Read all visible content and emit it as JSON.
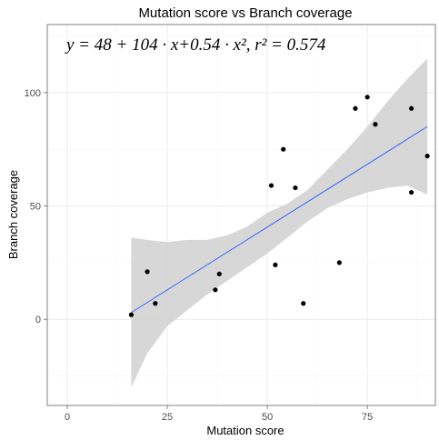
{
  "chart_data": {
    "type": "scatter",
    "title": "Mutation score vs Branch coverage",
    "xlabel": "Mutation score",
    "ylabel": "Branch coverage",
    "annotation": "y = 48 + 104 · x+0.54 · x², r² = 0.574",
    "xlim": [
      -5,
      92
    ],
    "ylim": [
      -38,
      130
    ],
    "x_ticks": [
      0,
      25,
      50,
      75
    ],
    "y_ticks": [
      0,
      50,
      100
    ],
    "x_tick_labels": [
      "0",
      "25",
      "50",
      "75"
    ],
    "y_tick_labels": [
      "0",
      "50",
      "100"
    ],
    "grid": true,
    "colors": {
      "points": "#000000",
      "fit_line": "#3366ff",
      "confidence_band": "#d3d3d3",
      "panel_border": "#7f7f7f",
      "grid_major": "#ebebeb",
      "grid_minor": "#f5f5f5"
    },
    "points": [
      {
        "x": 16,
        "y": 2
      },
      {
        "x": 20,
        "y": 21
      },
      {
        "x": 22,
        "y": 7
      },
      {
        "x": 37,
        "y": 13
      },
      {
        "x": 38,
        "y": 20
      },
      {
        "x": 51,
        "y": 59
      },
      {
        "x": 52,
        "y": 24
      },
      {
        "x": 54,
        "y": 75
      },
      {
        "x": 57,
        "y": 58
      },
      {
        "x": 59,
        "y": 7
      },
      {
        "x": 68,
        "y": 25
      },
      {
        "x": 72,
        "y": 93
      },
      {
        "x": 75,
        "y": 98
      },
      {
        "x": 77,
        "y": 86
      },
      {
        "x": 86,
        "y": 93
      },
      {
        "x": 86,
        "y": 56
      },
      {
        "x": 90,
        "y": 72
      }
    ],
    "fit_line": {
      "x": [
        16,
        90
      ],
      "y": [
        3,
        85
      ]
    },
    "confidence_band": {
      "x": [
        16,
        20,
        25,
        30,
        35,
        40,
        45,
        50,
        55,
        60,
        65,
        70,
        75,
        80,
        85,
        90
      ],
      "lower": [
        -30,
        -15,
        -3,
        4,
        11,
        17,
        23,
        29,
        36,
        43,
        49,
        53,
        56,
        58,
        59,
        55
      ],
      "upper": [
        36,
        35,
        34,
        35,
        35,
        37,
        41,
        47,
        51,
        57,
        66,
        75,
        85,
        96,
        106,
        115
      ]
    }
  }
}
